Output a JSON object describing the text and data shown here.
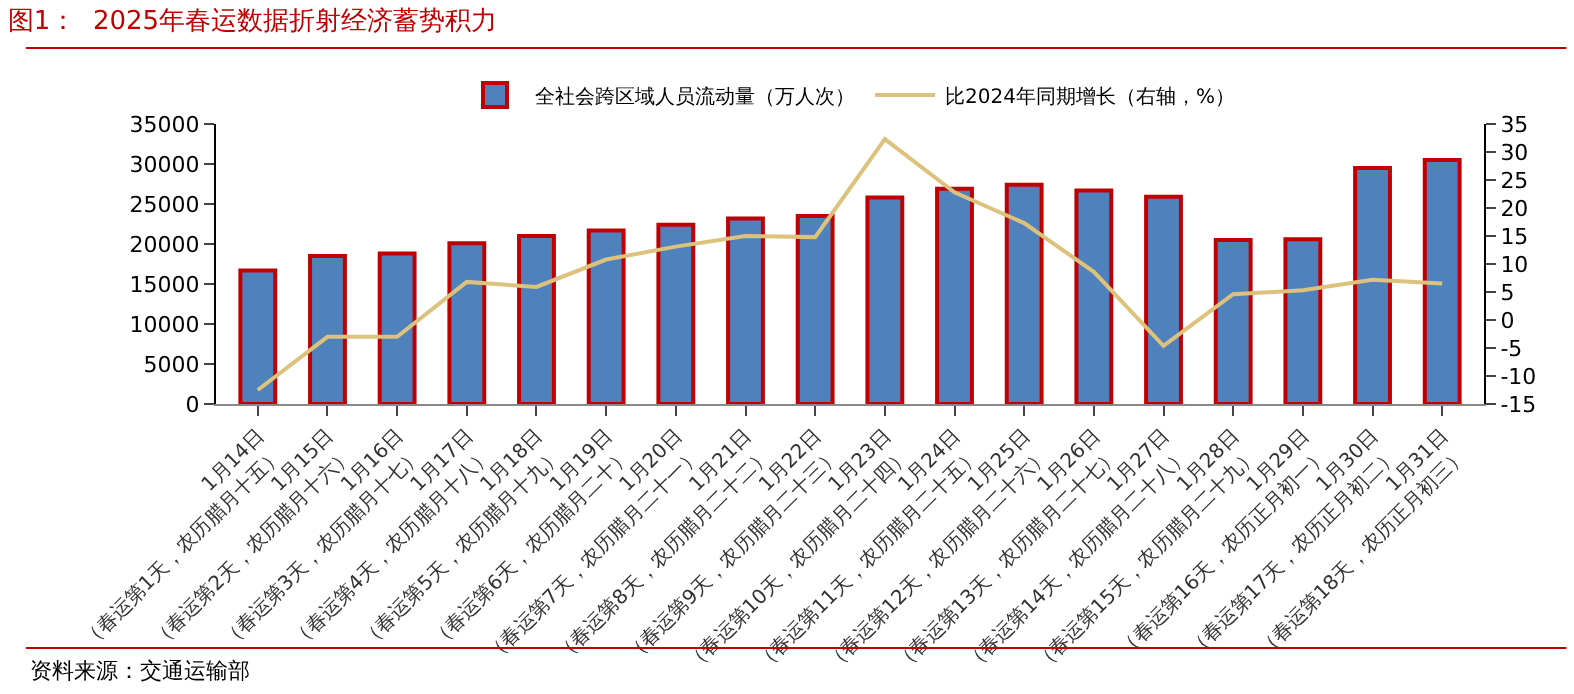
{
  "chart_data": {
    "type": "bar",
    "title": "图1：  2025年春运数据折射经济蓄势积力",
    "categories": [
      "1月14日（春运第1天，农历腊月十五）",
      "1月15日（春运第2天，农历腊月十六）",
      "1月16日（春运第3天，农历腊月十七）",
      "1月17日（春运第4天，农历腊月十八）",
      "1月18日（春运第5天，农历腊月十九）",
      "1月19日（春运第6天，农历腊月二十）",
      "1月20日（春运第7天，农历腊月二十一）",
      "1月21日（春运第8天，农历腊月二十二）",
      "1月22日（春运第9天，农历腊月二十三）",
      "1月23日（春运第10天，农历腊月二十四）",
      "1月24日（春运第11天，农历腊月二十五）",
      "1月25日（春运第12天，农历腊月二十六）",
      "1月26日（春运第13天，农历腊月二十七）",
      "1月27日（春运第14天，农历腊月二十八）",
      "1月28日（春运第15天，农历腊月二十九）",
      "1月29日（春运第16天，农历正月初一）",
      "1月30日（春运第17天，农历正月初二）",
      "1月31日（春运第18天，农历正月初三）"
    ],
    "series": [
      {
        "name": "全社会跨区域人员流动量（万人次）",
        "color": "#4f81bd",
        "values": [
          16700,
          18500,
          18800,
          20100,
          21000,
          21700,
          22400,
          23200,
          23500,
          25800,
          26900,
          27400,
          26700,
          25900,
          20500,
          20600,
          29500,
          30500
        ]
      },
      {
        "name": "比2024年同期增长（右轴，%）",
        "type": "line",
        "axis": "y2",
        "color": "#dcc27c",
        "values": [
          -12.5,
          -3,
          -3,
          6.8,
          5.9,
          10.8,
          13.1,
          15,
          14.8,
          32.3,
          22.8,
          17.3,
          8.6,
          -4.6,
          4.6,
          5.3,
          7.2,
          6.5
        ]
      }
    ],
    "ylim": [
      0,
      35000
    ],
    "yticks": [
      0,
      5000,
      10000,
      15000,
      20000,
      25000,
      30000,
      35000
    ],
    "y2lim": [
      -15,
      35
    ],
    "y2ticks": [
      -15,
      -10,
      -5,
      0,
      5,
      10,
      15,
      20,
      25,
      30,
      35
    ],
    "legend": "top",
    "marker": "none",
    "line_style": "solid",
    "annotations": [
      "资料来源：交通运输部"
    ]
  }
}
